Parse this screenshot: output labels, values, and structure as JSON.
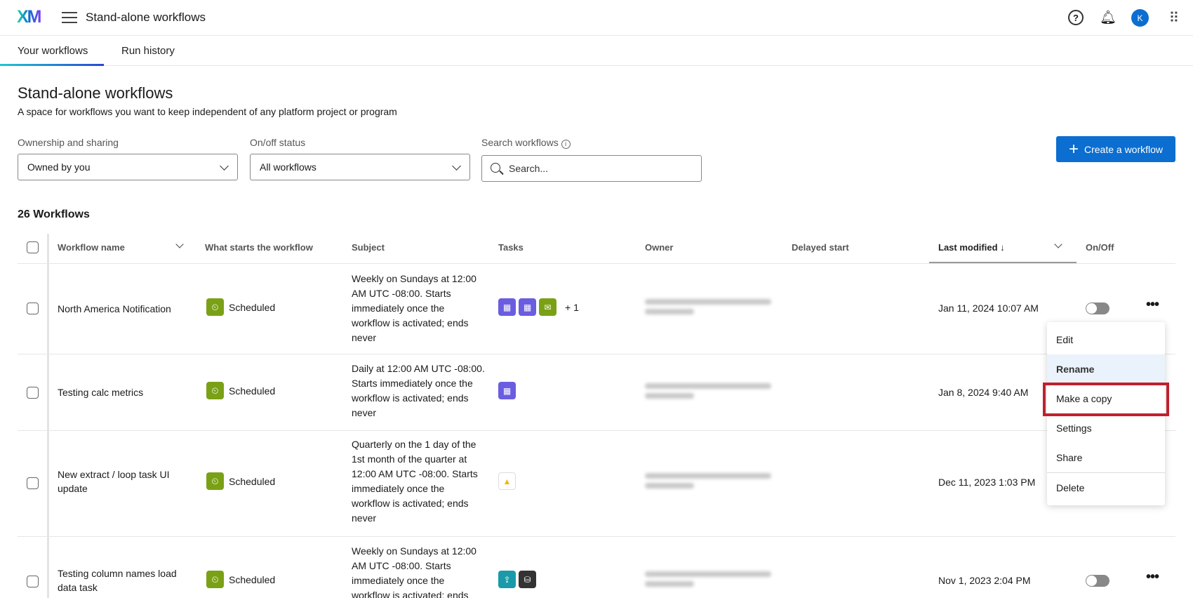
{
  "app": {
    "logo": "XM",
    "title": "Stand-alone workflows",
    "avatar": "K",
    "help": "?"
  },
  "tabs": [
    {
      "label": "Your workflows",
      "active": true
    },
    {
      "label": "Run history"
    }
  ],
  "page": {
    "title": "Stand-alone workflows",
    "subtitle": "A space for workflows you want to keep independent of any platform project or program"
  },
  "filters": {
    "ownership_label": "Ownership and sharing",
    "ownership_value": "Owned by you",
    "status_label": "On/off status",
    "status_value": "All workflows",
    "search_label": "Search workflows",
    "search_placeholder": "Search..."
  },
  "create_label": "Create a workflow",
  "count": "26 Workflows",
  "columns": [
    "Workflow name",
    "What starts the workflow",
    "Subject",
    "Tasks",
    "Owner",
    "Delayed start",
    "Last modified ↓",
    "On/Off"
  ],
  "rows": [
    {
      "name": "North America Notification",
      "trigger": "Scheduled",
      "subject": "Weekly on Sundays at 12:00 AM UTC -08:00. Starts immediately once the workflow is activated; ends never",
      "tasks": [
        "calculator",
        "calculator",
        "email"
      ],
      "more": "+ 1",
      "modified": "Jan 11, 2024 10:07 AM",
      "on": false
    },
    {
      "name": "Testing calc metrics",
      "trigger": "Scheduled",
      "subject": "Daily at 12:00 AM UTC -08:00. Starts immediately once the workflow is activated; ends never",
      "tasks": [
        "calculator"
      ],
      "modified": "Jan 8, 2024 9:40 AM"
    },
    {
      "name": "New extract / loop task UI update",
      "trigger": "Scheduled",
      "subject": "Quarterly on the 1 day of the 1st month of the quarter at 12:00 AM UTC -08:00. Starts immediately once the workflow is activated; ends never",
      "tasks": [
        "google-drive"
      ],
      "modified": "Dec 11, 2023 1:03 PM"
    },
    {
      "name": "Testing column names load data task",
      "trigger": "Scheduled",
      "subject": "Weekly on Sundays at 12:00 AM UTC -08:00. Starts immediately once the workflow is activated; ends",
      "tasks": [
        "upload",
        "database"
      ],
      "modified": "Nov 1, 2023 2:04 PM",
      "on": false
    }
  ],
  "menu": [
    "Edit",
    "Rename",
    "Make a copy",
    "Settings",
    "Share",
    "Delete"
  ],
  "colors": {
    "accent": "#0b6ed0",
    "trigger": "#7aa116",
    "calc": "#6a5de0",
    "highlight": "#c0202e"
  }
}
